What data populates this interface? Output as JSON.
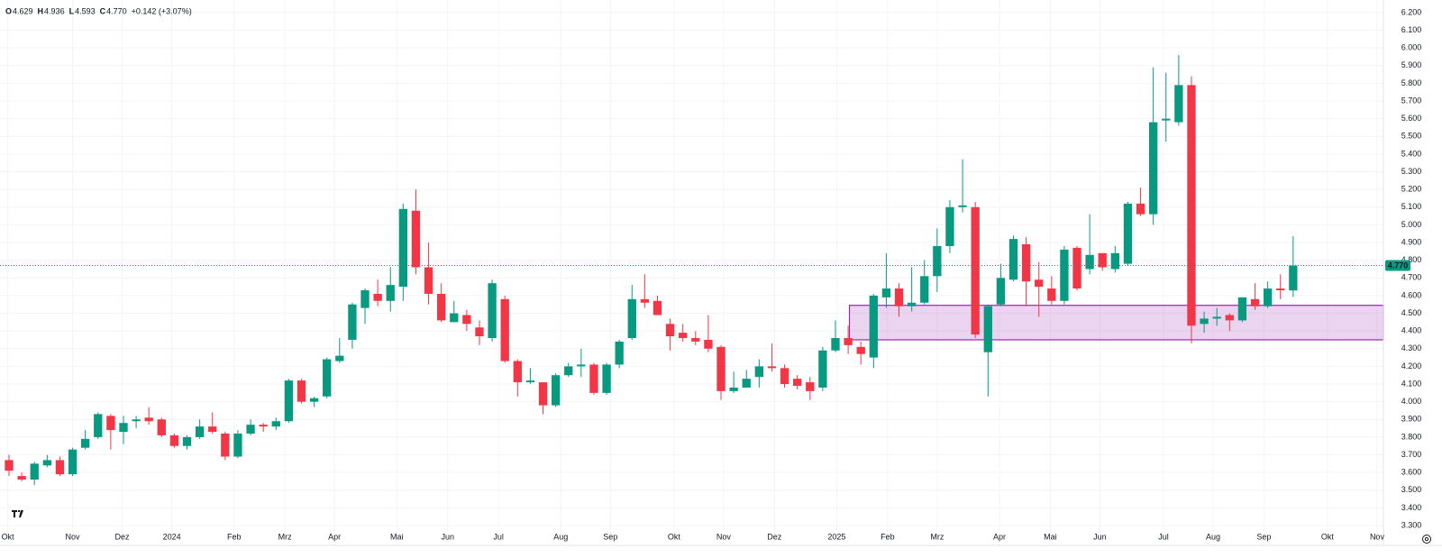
{
  "chart_data": {
    "type": "candlestick",
    "up_color": "#089981",
    "down_color": "#f23645",
    "grid": true,
    "ohlc_legend": [
      {
        "label": "O",
        "value": "4.629"
      },
      {
        "label": "H",
        "value": "4.936"
      },
      {
        "label": "L",
        "value": "4.593"
      },
      {
        "label": "C",
        "value": "4.770"
      }
    ],
    "change": "+0.142 (+3.07%)",
    "last_price": {
      "value": 4.77,
      "label": "4.770"
    },
    "zone": {
      "x_start": 66.1,
      "low": 4.35,
      "high": 4.545,
      "color": "#9c27b0"
    },
    "x": [
      0,
      1,
      2,
      3,
      4,
      5,
      6,
      7,
      8,
      9,
      10,
      11,
      12,
      13,
      14,
      15,
      16,
      17,
      18,
      19,
      20,
      21,
      22,
      23,
      24,
      25,
      26,
      27,
      28,
      29,
      30,
      31,
      32,
      33,
      34,
      35,
      36,
      37,
      38,
      39,
      40,
      41,
      42,
      43,
      44,
      45,
      46,
      47,
      48,
      49,
      50,
      51,
      52,
      53,
      54,
      55,
      56,
      57,
      58,
      59,
      60,
      61,
      62,
      63,
      64,
      65,
      66,
      67,
      68,
      69,
      70,
      71,
      72,
      73,
      74,
      75,
      76,
      77,
      78,
      79,
      80,
      81,
      82,
      83,
      84,
      85,
      86,
      87,
      88,
      89,
      90,
      91,
      92,
      93,
      94,
      95,
      96,
      97,
      98,
      99,
      100,
      101
    ],
    "open": [
      3.67,
      3.58,
      3.56,
      3.64,
      3.67,
      3.59,
      3.74,
      3.8,
      3.92,
      3.83,
      3.89,
      3.91,
      3.9,
      3.81,
      3.75,
      3.8,
      3.86,
      3.82,
      3.69,
      3.82,
      3.87,
      3.86,
      3.89,
      4.12,
      4.0,
      4.03,
      4.23,
      4.35,
      4.53,
      4.61,
      4.57,
      4.65,
      5.08,
      4.76,
      4.61,
      4.45,
      4.49,
      4.42,
      4.36,
      4.58,
      4.23,
      4.11,
      4.11,
      3.98,
      4.15,
      4.2,
      4.21,
      4.05,
      4.21,
      4.36,
      4.58,
      4.57,
      4.44,
      4.39,
      4.36,
      4.35,
      4.31,
      4.06,
      4.08,
      4.14,
      4.2,
      4.19,
      4.13,
      4.11,
      4.08,
      4.29,
      4.36,
      4.31,
      4.25,
      4.59,
      4.64,
      4.54,
      4.56,
      4.71,
      4.88,
      5.1,
      5.1,
      4.28,
      4.55,
      4.69,
      4.89,
      4.69,
      4.64,
      4.57,
      4.87,
      4.75,
      4.84,
      4.75,
      4.78,
      5.12,
      5.06,
      5.59,
      5.58,
      5.79,
      4.44,
      4.47,
      4.49,
      4.46,
      4.58,
      4.54,
      4.64,
      4.629
    ],
    "high": [
      3.7,
      3.6,
      3.66,
      3.7,
      3.69,
      3.74,
      3.84,
      3.94,
      3.93,
      3.92,
      3.92,
      3.97,
      3.91,
      3.82,
      3.81,
      3.9,
      3.94,
      3.83,
      3.84,
      3.9,
      3.88,
      3.91,
      4.13,
      4.13,
      4.03,
      4.25,
      4.36,
      4.56,
      4.64,
      4.69,
      4.76,
      5.12,
      5.2,
      4.9,
      4.67,
      4.57,
      4.52,
      4.46,
      4.69,
      4.6,
      4.24,
      4.19,
      4.11,
      4.16,
      4.22,
      4.3,
      4.22,
      4.22,
      4.35,
      4.66,
      4.72,
      4.6,
      4.47,
      4.44,
      4.4,
      4.49,
      4.32,
      4.17,
      4.18,
      4.24,
      4.33,
      4.21,
      4.15,
      4.14,
      4.31,
      4.46,
      4.43,
      4.34,
      4.61,
      4.84,
      4.67,
      4.76,
      4.8,
      4.98,
      5.14,
      5.37,
      5.13,
      4.55,
      4.78,
      4.94,
      4.93,
      4.79,
      4.71,
      4.88,
      4.88,
      5.06,
      4.84,
      4.88,
      5.13,
      5.21,
      5.89,
      5.86,
      5.96,
      5.84,
      4.51,
      4.53,
      4.5,
      4.59,
      4.67,
      4.68,
      4.72,
      4.936
    ],
    "low": [
      3.58,
      3.55,
      3.53,
      3.63,
      3.58,
      3.58,
      3.73,
      3.79,
      3.73,
      3.76,
      3.85,
      3.87,
      3.8,
      3.74,
      3.73,
      3.79,
      3.82,
      3.67,
      3.68,
      3.81,
      3.83,
      3.84,
      3.88,
      3.99,
      3.97,
      4.02,
      4.22,
      4.3,
      4.44,
      4.54,
      4.51,
      4.57,
      4.72,
      4.55,
      4.45,
      4.45,
      4.4,
      4.32,
      4.34,
      4.22,
      4.03,
      4.1,
      3.93,
      3.97,
      4.14,
      4.14,
      4.04,
      4.04,
      4.19,
      4.35,
      4.53,
      4.49,
      4.29,
      4.34,
      4.32,
      4.28,
      4.01,
      4.05,
      4.08,
      4.08,
      4.17,
      4.08,
      4.07,
      4.01,
      4.06,
      4.28,
      4.27,
      4.21,
      4.19,
      4.53,
      4.48,
      4.51,
      4.55,
      4.62,
      4.84,
      5.07,
      4.36,
      4.03,
      4.54,
      4.68,
      4.54,
      4.48,
      4.55,
      4.55,
      4.63,
      4.72,
      4.74,
      4.73,
      4.77,
      5.05,
      5.0,
      5.47,
      5.56,
      4.33,
      4.39,
      4.43,
      4.4,
      4.45,
      4.52,
      4.53,
      4.58,
      4.593
    ],
    "close": [
      3.61,
      3.56,
      3.65,
      3.67,
      3.59,
      3.73,
      3.79,
      3.93,
      3.84,
      3.88,
      3.9,
      3.89,
      3.81,
      3.75,
      3.8,
      3.86,
      3.83,
      3.69,
      3.82,
      3.87,
      3.86,
      3.89,
      4.12,
      4.0,
      4.02,
      4.24,
      4.26,
      4.55,
      4.63,
      4.57,
      4.66,
      5.09,
      4.76,
      4.61,
      4.46,
      4.5,
      4.44,
      4.37,
      4.67,
      4.23,
      4.11,
      4.12,
      3.98,
      4.15,
      4.2,
      4.21,
      4.05,
      4.21,
      4.34,
      4.58,
      4.56,
      4.49,
      4.37,
      4.36,
      4.34,
      4.3,
      4.06,
      4.08,
      4.13,
      4.2,
      4.19,
      4.1,
      4.09,
      4.06,
      4.29,
      4.36,
      4.32,
      4.27,
      4.6,
      4.64,
      4.54,
      4.56,
      4.71,
      4.88,
      5.1,
      5.11,
      4.38,
      4.54,
      4.7,
      4.92,
      4.68,
      4.65,
      4.57,
      4.86,
      4.64,
      4.83,
      4.76,
      4.84,
      5.12,
      5.06,
      5.58,
      5.6,
      5.79,
      4.43,
      4.47,
      4.48,
      4.46,
      4.59,
      4.54,
      4.64,
      4.63,
      4.77
    ],
    "xlim": [
      -0.71,
      108.1
    ],
    "xticks": [
      {
        "value": -0.1,
        "label": "Okt"
      },
      {
        "value": 5.0,
        "label": "Nov"
      },
      {
        "value": 8.9,
        "label": "Dez"
      },
      {
        "value": 12.8,
        "label": "2024"
      },
      {
        "value": 17.7,
        "label": "Feb"
      },
      {
        "value": 21.7,
        "label": "Mrz"
      },
      {
        "value": 25.6,
        "label": "Apr"
      },
      {
        "value": 30.5,
        "label": "Mai"
      },
      {
        "value": 34.5,
        "label": "Jun"
      },
      {
        "value": 38.5,
        "label": "Jul"
      },
      {
        "value": 43.4,
        "label": "Aug"
      },
      {
        "value": 47.3,
        "label": "Sep"
      },
      {
        "value": 52.3,
        "label": "Okt"
      },
      {
        "value": 56.2,
        "label": "Nov"
      },
      {
        "value": 60.2,
        "label": "Dez"
      },
      {
        "value": 65.1,
        "label": "2025"
      },
      {
        "value": 69.1,
        "label": "Feb"
      },
      {
        "value": 73.0,
        "label": "Mrz"
      },
      {
        "value": 77.9,
        "label": "Apr"
      },
      {
        "value": 81.9,
        "label": "Mai"
      },
      {
        "value": 85.8,
        "label": "Jun"
      },
      {
        "value": 90.8,
        "label": "Jul"
      },
      {
        "value": 94.7,
        "label": "Aug"
      },
      {
        "value": 98.7,
        "label": "Sep"
      },
      {
        "value": 103.7,
        "label": "Okt"
      },
      {
        "value": 107.6,
        "label": "Nov"
      }
    ],
    "ylim": [
      3.188,
      6.271
    ],
    "yticks": [
      {
        "value": 3.3,
        "label": "3.300"
      },
      {
        "value": 3.4,
        "label": "3.400"
      },
      {
        "value": 3.5,
        "label": "3.500"
      },
      {
        "value": 3.6,
        "label": "3.600"
      },
      {
        "value": 3.7,
        "label": "3.700"
      },
      {
        "value": 3.8,
        "label": "3.800"
      },
      {
        "value": 3.9,
        "label": "3.900"
      },
      {
        "value": 4.0,
        "label": "4.000"
      },
      {
        "value": 4.1,
        "label": "4.100"
      },
      {
        "value": 4.2,
        "label": "4.200"
      },
      {
        "value": 4.3,
        "label": "4.300"
      },
      {
        "value": 4.4,
        "label": "4.400"
      },
      {
        "value": 4.5,
        "label": "4.500"
      },
      {
        "value": 4.6,
        "label": "4.600"
      },
      {
        "value": 4.7,
        "label": "4.700"
      },
      {
        "value": 4.8,
        "label": "4.800"
      },
      {
        "value": 4.9,
        "label": "4.900"
      },
      {
        "value": 5.0,
        "label": "5.000"
      },
      {
        "value": 5.1,
        "label": "5.100"
      },
      {
        "value": 5.2,
        "label": "5.200"
      },
      {
        "value": 5.3,
        "label": "5.300"
      },
      {
        "value": 5.4,
        "label": "5.400"
      },
      {
        "value": 5.5,
        "label": "5.500"
      },
      {
        "value": 5.6,
        "label": "5.600"
      },
      {
        "value": 5.7,
        "label": "5.700"
      },
      {
        "value": 5.8,
        "label": "5.800"
      },
      {
        "value": 5.9,
        "label": "5.900"
      },
      {
        "value": 6.0,
        "label": "6.000"
      },
      {
        "value": 6.1,
        "label": "6.100"
      },
      {
        "value": 6.2,
        "label": "6.200"
      }
    ]
  }
}
